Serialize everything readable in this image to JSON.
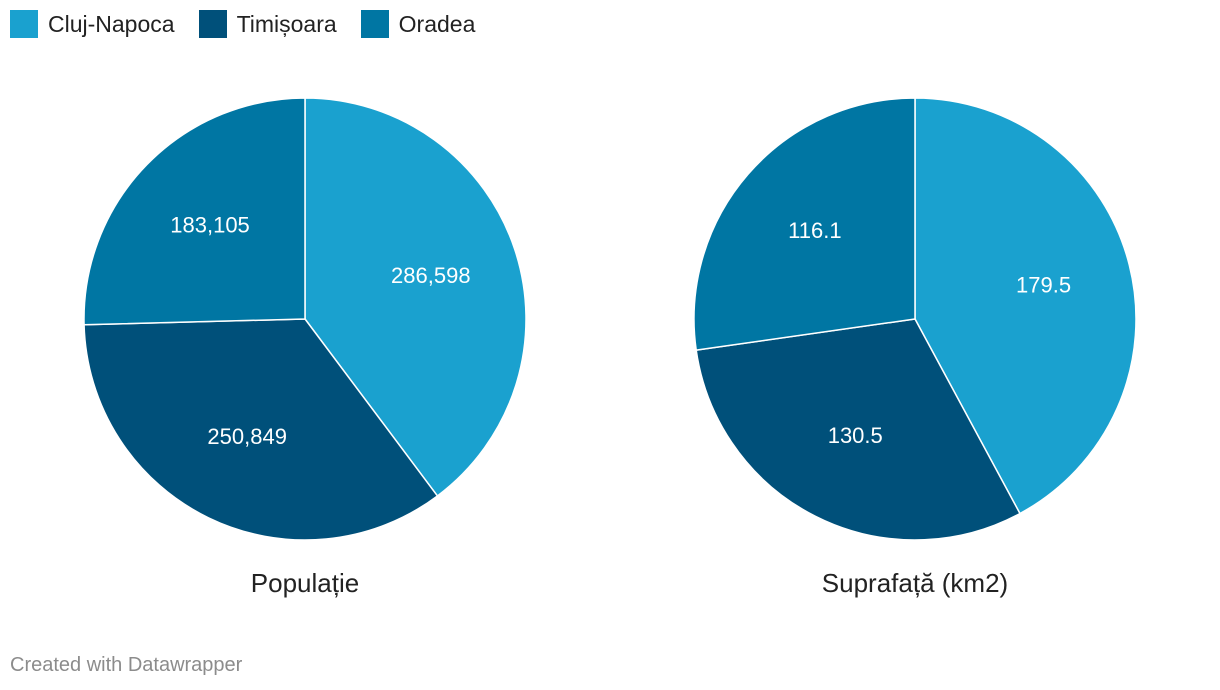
{
  "legend": [
    {
      "label": "Cluj-Napoca",
      "color": "#1aa1cf"
    },
    {
      "label": "Timișoara",
      "color": "#00507a"
    },
    {
      "label": "Oradea",
      "color": "#0076a3"
    }
  ],
  "chart_data": [
    {
      "type": "pie",
      "title": "Populație",
      "categories": [
        "Cluj-Napoca",
        "Timișoara",
        "Oradea"
      ],
      "values": [
        286598,
        250849,
        183105
      ],
      "value_labels": [
        "286,598",
        "250,849",
        "183,105"
      ],
      "colors": [
        "#1aa1cf",
        "#00507a",
        "#0076a3"
      ]
    },
    {
      "type": "pie",
      "title": "Suprafață (km2)",
      "categories": [
        "Cluj-Napoca",
        "Timișoara",
        "Oradea"
      ],
      "values": [
        179.5,
        130.5,
        116.1
      ],
      "value_labels": [
        "179.5",
        "130.5",
        "116.1"
      ],
      "colors": [
        "#1aa1cf",
        "#00507a",
        "#0076a3"
      ]
    }
  ],
  "footer": "Created with Datawrapper"
}
